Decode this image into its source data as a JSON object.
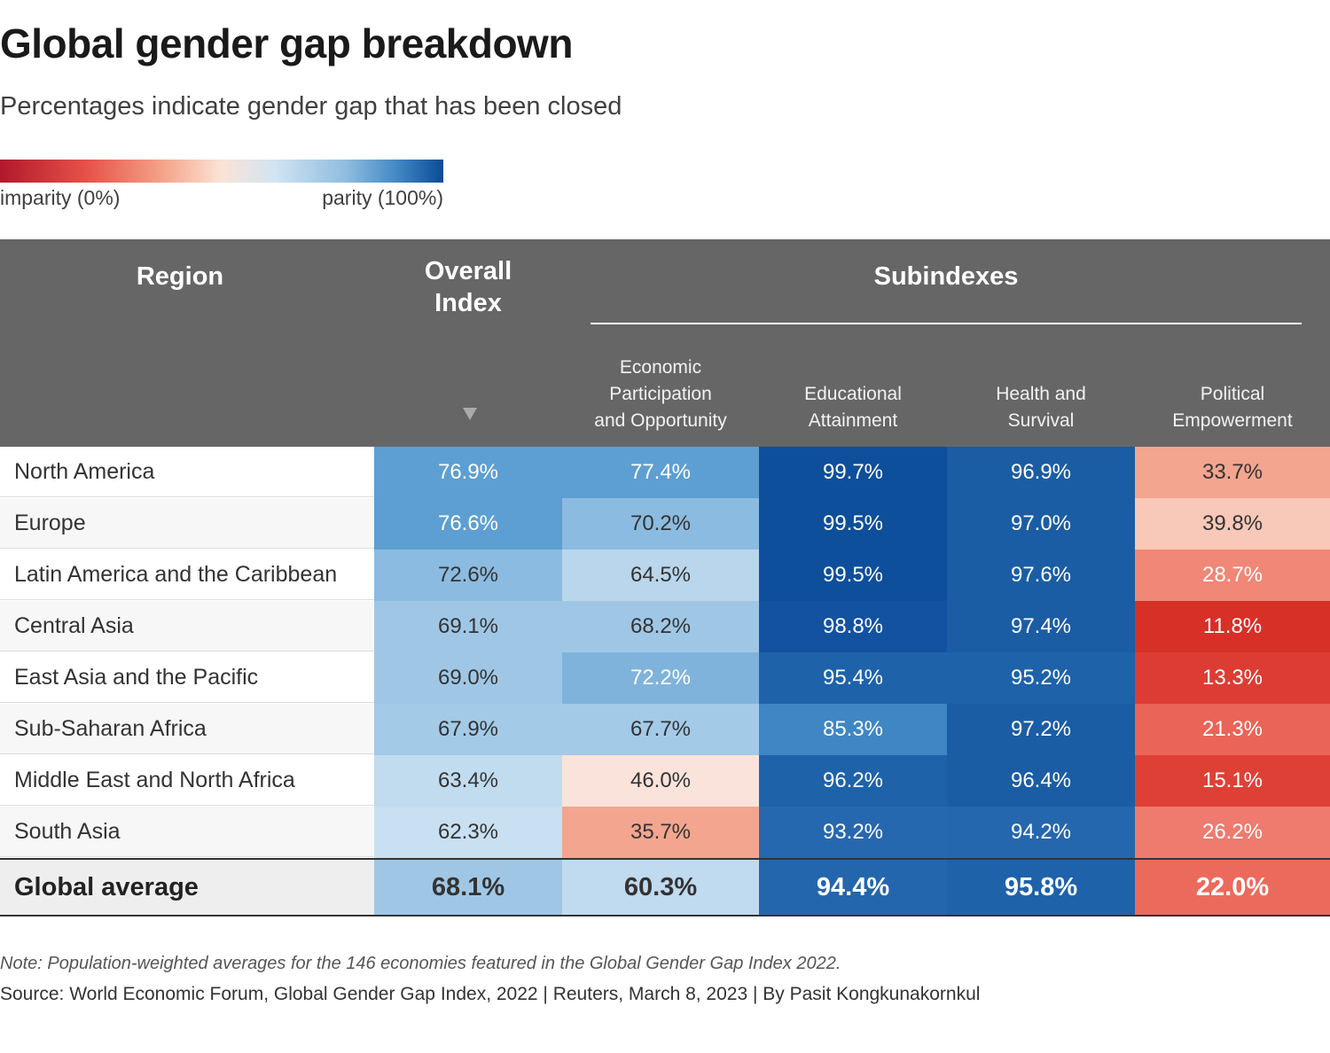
{
  "title": "Global gender gap breakdown",
  "subtitle": "Percentages indicate gender gap that has been closed",
  "legend": {
    "low_label": "imparity (0%)",
    "high_label": "parity (100%)"
  },
  "header": {
    "region": "Region",
    "overall_line1": "Overall",
    "overall_line2": "Index",
    "subindexes": "Subindexes",
    "columns": [
      {
        "line1": "Economic",
        "line2": "Participation",
        "line3": "and Opportunity"
      },
      {
        "line1": "Educational",
        "line2": "Attainment"
      },
      {
        "line1": "Health and",
        "line2": "Survival"
      },
      {
        "line1": "Political",
        "line2": "Empowerment"
      }
    ]
  },
  "chart_data": {
    "type": "table",
    "columns": [
      "Region",
      "Overall Index",
      "Economic Participation and Opportunity",
      "Educational Attainment",
      "Health and Survival",
      "Political Empowerment"
    ],
    "rows": [
      {
        "region": "North America",
        "values": [
          76.9,
          77.4,
          99.7,
          96.9,
          33.7
        ],
        "labels": [
          "76.9%",
          "77.4%",
          "99.7%",
          "96.9%",
          "33.7%"
        ]
      },
      {
        "region": "Europe",
        "values": [
          76.6,
          70.2,
          99.5,
          97.0,
          39.8
        ],
        "labels": [
          "76.6%",
          "70.2%",
          "99.5%",
          "97.0%",
          "39.8%"
        ]
      },
      {
        "region": "Latin America and the Caribbean",
        "values": [
          72.6,
          64.5,
          99.5,
          97.6,
          28.7
        ],
        "labels": [
          "72.6%",
          "64.5%",
          "99.5%",
          "97.6%",
          "28.7%"
        ]
      },
      {
        "region": "Central Asia",
        "values": [
          69.1,
          68.2,
          98.8,
          97.4,
          11.8
        ],
        "labels": [
          "69.1%",
          "68.2%",
          "98.8%",
          "97.4%",
          "11.8%"
        ]
      },
      {
        "region": "East Asia and the Pacific",
        "values": [
          69.0,
          72.2,
          95.4,
          95.2,
          13.3
        ],
        "labels": [
          "69.0%",
          "72.2%",
          "95.4%",
          "95.2%",
          "13.3%"
        ]
      },
      {
        "region": "Sub-Saharan Africa",
        "values": [
          67.9,
          67.7,
          85.3,
          97.2,
          21.3
        ],
        "labels": [
          "67.9%",
          "67.7%",
          "85.3%",
          "97.2%",
          "21.3%"
        ]
      },
      {
        "region": "Middle East and North Africa",
        "values": [
          63.4,
          46.0,
          96.2,
          96.4,
          15.1
        ],
        "labels": [
          "63.4%",
          "46.0%",
          "96.2%",
          "96.4%",
          "15.1%"
        ]
      },
      {
        "region": "South Asia",
        "values": [
          62.3,
          35.7,
          93.2,
          94.2,
          26.2
        ],
        "labels": [
          "62.3%",
          "35.7%",
          "93.2%",
          "94.2%",
          "26.2%"
        ]
      }
    ],
    "total": {
      "region": "Global average",
      "values": [
        68.1,
        60.3,
        94.4,
        95.8,
        22.0
      ],
      "labels": [
        "68.1%",
        "60.3%",
        "94.4%",
        "95.8%",
        "22.0%"
      ]
    },
    "color_scale": {
      "min": 0,
      "max": 100,
      "low_color": "#b2182b",
      "mid_color": "#fbe3d7",
      "high_color": "#0b4b96"
    },
    "sort": "Overall Index descending"
  },
  "cell_colors": {
    "rows": [
      [
        "#5d9fd2",
        "#5d9fd2",
        "#0d4f9b",
        "#1b5da4",
        "#f4a58f"
      ],
      [
        "#5d9fd2",
        "#8bbbe0",
        "#0d4f9b",
        "#1b5da4",
        "#f8c8b8"
      ],
      [
        "#8bbbe0",
        "#b9d6ec",
        "#0d4f9b",
        "#1b5da4",
        "#f08777"
      ],
      [
        "#9fc7e5",
        "#9fc7e5",
        "#1352a0",
        "#1b5da4",
        "#d73027"
      ],
      [
        "#9fc7e5",
        "#7fb3dc",
        "#1e62aa",
        "#1e62aa",
        "#dd3c33"
      ],
      [
        "#a3cae7",
        "#a3cae7",
        "#3f86c4",
        "#1b5da4",
        "#ea6457"
      ],
      [
        "#c1dcef",
        "#fae3da",
        "#1e62aa",
        "#1b5da4",
        "#df4036"
      ],
      [
        "#c8e0f1",
        "#f4a58f",
        "#2668b0",
        "#2467ae",
        "#ee7b6e"
      ]
    ],
    "total": [
      "#9fc7e5",
      "#c0daef",
      "#2466ad",
      "#1e62aa",
      "#ec6a5c"
    ]
  },
  "text_colors": {
    "light": "#ffffff",
    "dark": "#333333"
  },
  "note": "Note: Population-weighted averages for the 146 economies featured in the Global Gender Gap Index 2022.",
  "source": "Source: World Economic Forum, Global Gender Gap Index, 2022 | Reuters, March 8, 2023 | By Pasit Kongkunakornkul"
}
